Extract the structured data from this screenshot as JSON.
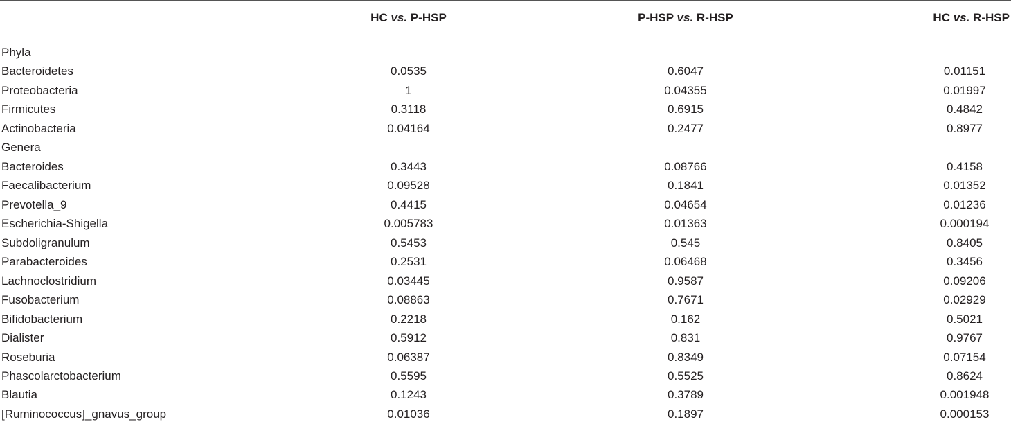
{
  "table": {
    "header": [
      [
        "HC",
        "vs.",
        "P-HSP"
      ],
      [
        "P-HSP",
        "vs.",
        "R-HSP"
      ],
      [
        "HC",
        "vs.",
        "R-HSP"
      ]
    ],
    "rows": [
      [
        "Phyla"
      ],
      [
        "Bacteroidetes",
        "0.0535",
        "0.6047",
        "0.01151"
      ],
      [
        "Proteobacteria",
        "1",
        "0.04355",
        "0.01997"
      ],
      [
        "Firmicutes",
        "0.3118",
        "0.6915",
        "0.4842"
      ],
      [
        "Actinobacteria",
        "0.04164",
        "0.2477",
        "0.8977"
      ],
      [
        "Genera"
      ],
      [
        "Bacteroides",
        "0.3443",
        "0.08766",
        "0.4158"
      ],
      [
        "Faecalibacterium",
        "0.09528",
        "0.1841",
        "0.01352"
      ],
      [
        "Prevotella_9",
        "0.4415",
        "0.04654",
        "0.01236"
      ],
      [
        "Escherichia-Shigella",
        "0.005783",
        "0.01363",
        "0.000194"
      ],
      [
        "Subdoligranulum",
        "0.5453",
        "0.545",
        "0.8405"
      ],
      [
        "Parabacteroides",
        "0.2531",
        "0.06468",
        "0.3456"
      ],
      [
        "Lachnoclostridium",
        "0.03445",
        "0.9587",
        "0.09206"
      ],
      [
        "Fusobacterium",
        "0.08863",
        "0.7671",
        "0.02929"
      ],
      [
        "Bifidobacterium",
        "0.2218",
        "0.162",
        "0.5021"
      ],
      [
        "Dialister",
        "0.5912",
        "0.831",
        "0.9767"
      ],
      [
        "Roseburia",
        "0.06387",
        "0.8349",
        "0.07154"
      ],
      [
        "Phascolarctobacterium",
        "0.5595",
        "0.5525",
        "0.8624"
      ],
      [
        "Blautia",
        "0.1243",
        "0.3789",
        "0.001948"
      ],
      [
        "[Ruminococcus]_gnavus_group",
        "0.01036",
        "0.1897",
        "0.000153"
      ]
    ]
  }
}
